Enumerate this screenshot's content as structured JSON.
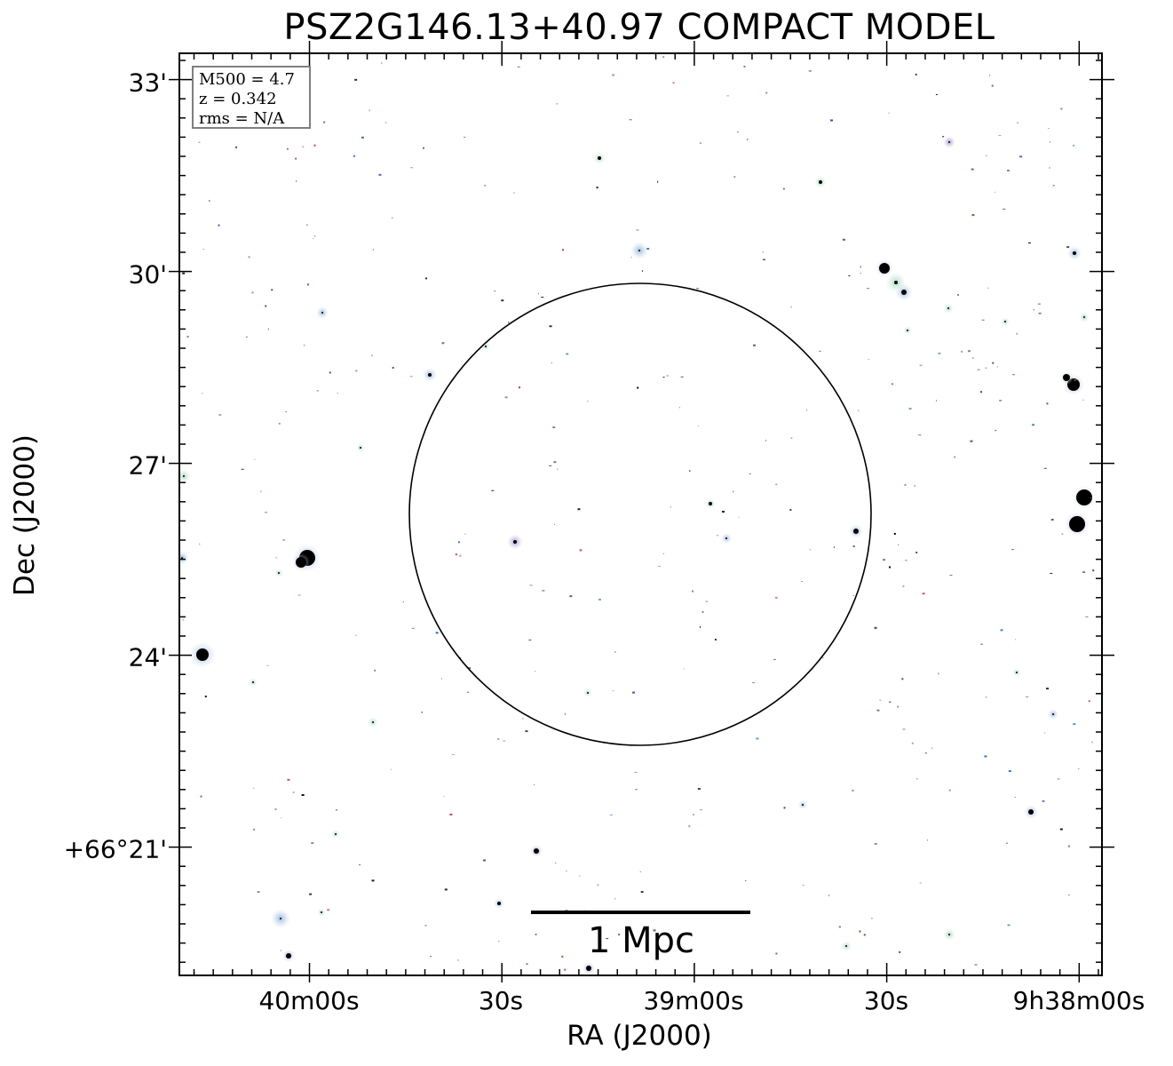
{
  "title": "PSZ2G146.13+40.97 COMPACT MODEL",
  "axes": {
    "xlabel": "RA (J2000)",
    "ylabel": "Dec (J2000)",
    "x_ticks": [
      "40m00s",
      "30s",
      "39m00s",
      "30s",
      "9h38m00s"
    ],
    "y_ticks": [
      "33'",
      "30'",
      "27'",
      "24'",
      "+66°21'"
    ]
  },
  "info": {
    "mass": "M500 = 4.7",
    "redshift": "z = 0.342",
    "rms": "rms = N/A"
  },
  "scale_bar": {
    "label": "1 Mpc"
  },
  "colors": {
    "frame": "#000000",
    "source_core": "#000000",
    "source_halo_blue": "#a8c4e0",
    "source_halo_green": "#bfe0cf",
    "source_halo_purple": "#c4b0dc",
    "infobox_border": "#808080"
  }
}
